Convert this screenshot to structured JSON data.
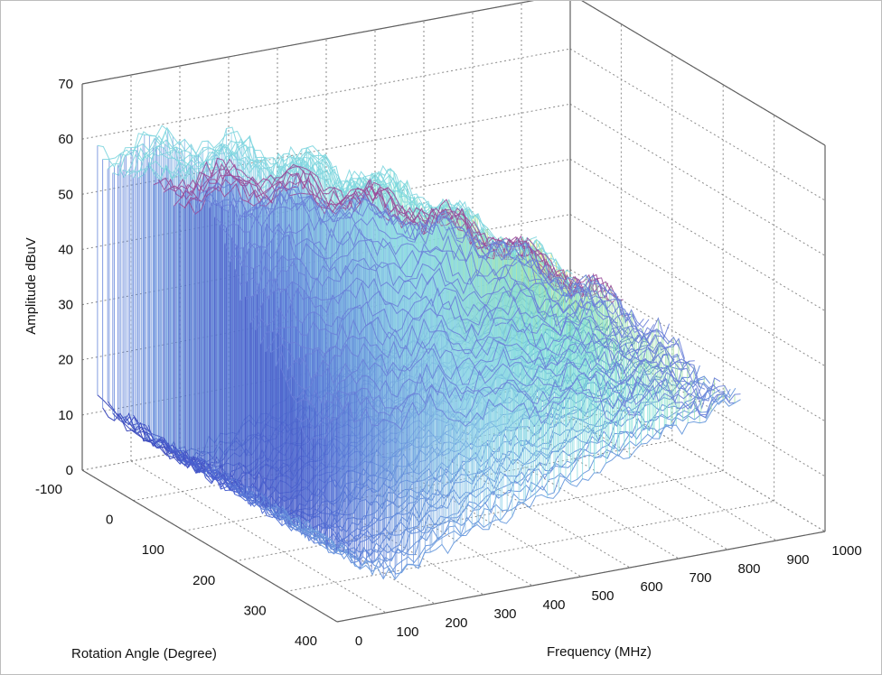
{
  "chart_data": {
    "type": "3d-waterfall-surface",
    "title": "",
    "xlabel": "Frequency (MHz)",
    "ylabel": "Rotation Angle (Degree)",
    "zlabel": "Amplitude dBuV",
    "x_ticks": [
      "0",
      "100",
      "200",
      "300",
      "400",
      "500",
      "600",
      "700",
      "800",
      "900",
      "1000"
    ],
    "y_ticks": [
      "-100",
      "0",
      "100",
      "200",
      "300",
      "400"
    ],
    "z_ticks": [
      "0",
      "10",
      "20",
      "30",
      "40",
      "50",
      "60",
      "70"
    ],
    "xlim": [
      0,
      1000
    ],
    "ylim": [
      -100,
      400
    ],
    "zlim": [
      0,
      70
    ],
    "grid": true,
    "colormap": [
      "#2a2a9a",
      "#4a5fd0",
      "#8fd0ea",
      "#79e0d4",
      "#d9e060",
      "#d04050"
    ],
    "approximate_surface": {
      "angles_deg": [
        -60,
        -30,
        0,
        30,
        60,
        90,
        120,
        150,
        180,
        210,
        240,
        270,
        300,
        330,
        360
      ],
      "freq_mhz": [
        0,
        50,
        100,
        150,
        200,
        250,
        300,
        400,
        500,
        600,
        700,
        800,
        900
      ],
      "envelope_dbuv": [
        60,
        60,
        60,
        59,
        58,
        57,
        55,
        52,
        48,
        44,
        38,
        32,
        26
      ],
      "floor_dbuv": [
        14,
        10,
        6,
        3,
        2,
        3,
        5,
        8,
        11,
        14,
        17,
        19,
        22
      ]
    }
  }
}
